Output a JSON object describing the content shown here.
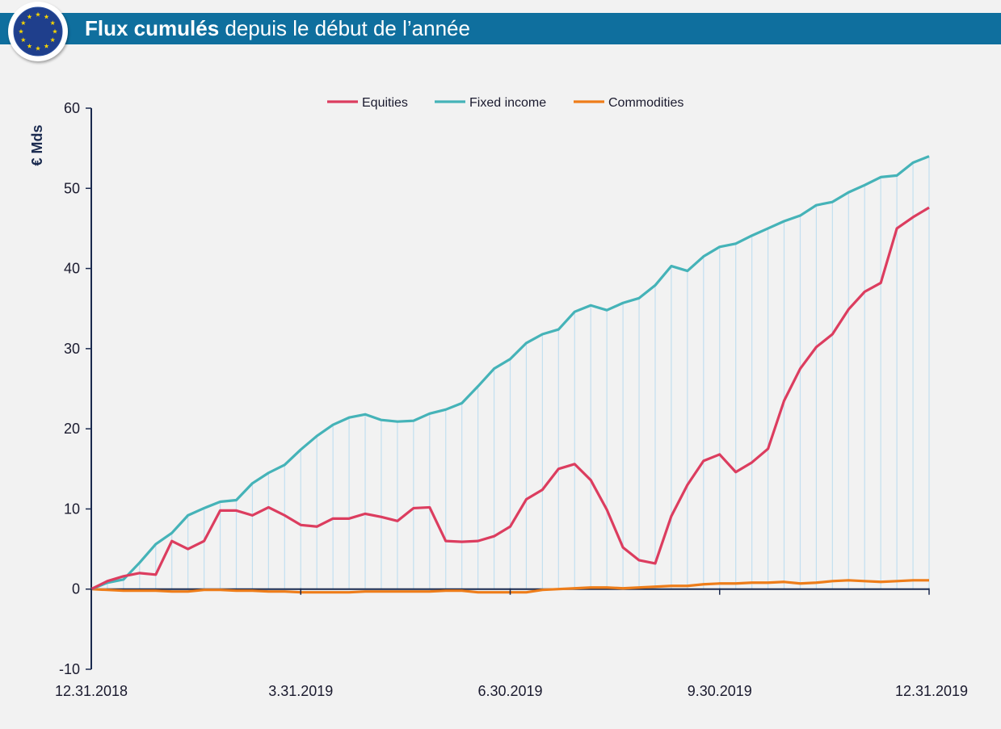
{
  "header": {
    "title_bold": "Flux cumulés",
    "title_rest": " depuis le début de l’année",
    "logo_icon": "eu-stars-logo-icon"
  },
  "colors": {
    "header_bg": "#0f6f9e",
    "equities": "#dc3d5f",
    "fixed_income": "#45b3b8",
    "commodities": "#ee7d1a",
    "vertical_lines": "#c2dff0",
    "axis": "#1a2a4f"
  },
  "chart_data": {
    "type": "line",
    "ylabel": "€ Mds",
    "ylim": [
      -10,
      60
    ],
    "yticks": [
      -10,
      0,
      10,
      20,
      30,
      40,
      50,
      60
    ],
    "xlim": [
      "12.31.2018",
      "12.31.2019"
    ],
    "xtick_labels": [
      "12.31.2018",
      "3.31.2019",
      "6.30.2019",
      "9.30.2019",
      "12.31.2019"
    ],
    "legend_position": "top",
    "vertical_gridlines": true,
    "points_per_series": 53,
    "series": [
      {
        "name": "Equities",
        "values": [
          0,
          1.0,
          1.6,
          2.0,
          1.8,
          6.0,
          5.0,
          6.0,
          9.8,
          9.8,
          9.2,
          10.2,
          9.2,
          8.0,
          7.8,
          8.8,
          8.8,
          9.4,
          9.0,
          8.5,
          10.1,
          10.2,
          6.0,
          5.9,
          6.0,
          6.6,
          7.8,
          11.2,
          12.4,
          15.0,
          15.6,
          13.6,
          9.9,
          5.2,
          3.6,
          3.2,
          9.1,
          13.0,
          16.0,
          16.8,
          14.6,
          15.8,
          17.5,
          23.5,
          27.5,
          30.2,
          31.8,
          34.9,
          37.1,
          38.2,
          45.0,
          46.4,
          47.6
        ],
        "color": "#dc3d5f"
      },
      {
        "name": "Fixed income",
        "values": [
          0,
          0.8,
          1.2,
          3.3,
          5.6,
          7.0,
          9.2,
          10.1,
          10.9,
          11.1,
          13.2,
          14.5,
          15.5,
          17.4,
          19.1,
          20.5,
          21.4,
          21.8,
          21.1,
          20.9,
          21.0,
          21.9,
          22.4,
          23.2,
          25.3,
          27.5,
          28.7,
          30.7,
          31.8,
          32.4,
          34.6,
          35.4,
          34.8,
          35.7,
          36.3,
          37.9,
          40.3,
          39.7,
          41.5,
          42.7,
          43.1,
          44.1,
          45.0,
          45.9,
          46.6,
          47.9,
          48.3,
          49.5,
          50.4,
          51.4,
          51.6,
          53.2,
          54.0
        ],
        "color": "#45b3b8"
      },
      {
        "name": "Commodities",
        "values": [
          0,
          -0.1,
          -0.2,
          -0.2,
          -0.2,
          -0.3,
          -0.3,
          -0.1,
          -0.1,
          -0.2,
          -0.2,
          -0.3,
          -0.3,
          -0.4,
          -0.4,
          -0.4,
          -0.4,
          -0.3,
          -0.3,
          -0.3,
          -0.3,
          -0.3,
          -0.2,
          -0.2,
          -0.4,
          -0.4,
          -0.4,
          -0.4,
          -0.1,
          0.0,
          0.1,
          0.2,
          0.2,
          0.1,
          0.2,
          0.3,
          0.4,
          0.4,
          0.6,
          0.7,
          0.7,
          0.8,
          0.8,
          0.9,
          0.7,
          0.8,
          1.0,
          1.1,
          1.0,
          0.9,
          1.0,
          1.1,
          1.1
        ],
        "color": "#ee7d1a"
      }
    ]
  }
}
